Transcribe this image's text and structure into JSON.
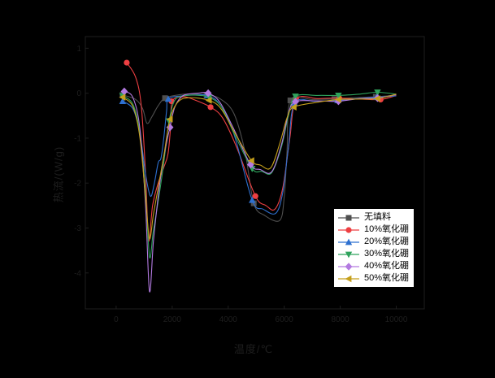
{
  "page": {
    "background": "#000000"
  },
  "chart_data": {
    "type": "line",
    "title": "",
    "xlabel": "温度/℃",
    "ylabel": "热流/(W/g)",
    "xlim": [
      -1100,
      11000
    ],
    "ylim": [
      -4.8,
      1.26
    ],
    "x_ticks": [
      0,
      2000,
      4000,
      6000,
      8000,
      10000
    ],
    "y_ticks": [
      1,
      0,
      -1,
      -2,
      -3,
      -4
    ],
    "grid": false,
    "legend_position": "right-center",
    "axis_color": "#1e1e1e",
    "series": [
      {
        "name": "无填料",
        "color": "#4f4f4f",
        "marker": "square",
        "points": [
          [
            230,
            -0.04
          ],
          [
            700,
            -0.14
          ],
          [
            950,
            -0.35
          ],
          [
            1100,
            -0.67
          ],
          [
            1280,
            -0.52
          ],
          [
            1500,
            -0.28
          ],
          [
            1744,
            -0.11
          ],
          [
            2300,
            -0.03
          ],
          [
            2800,
            -0.02
          ],
          [
            3228,
            -0.04
          ],
          [
            3700,
            -0.12
          ],
          [
            4200,
            -0.45
          ],
          [
            4600,
            -1.3
          ],
          [
            4913,
            -2.45
          ],
          [
            5300,
            -2.72
          ],
          [
            5840,
            -2.83
          ],
          [
            6000,
            -2.3
          ],
          [
            6100,
            -1.3
          ],
          [
            6220,
            -0.16
          ],
          [
            7000,
            -0.14
          ],
          [
            7790,
            -0.13
          ],
          [
            8500,
            -0.1
          ],
          [
            9270,
            -0.08
          ],
          [
            10000,
            -0.04
          ]
        ],
        "marker_points": [
          [
            230,
            -0.04
          ],
          [
            1744,
            -0.11
          ],
          [
            3228,
            -0.04
          ],
          [
            4913,
            -2.45
          ],
          [
            6220,
            -0.16
          ],
          [
            7790,
            -0.13
          ],
          [
            9270,
            -0.08
          ]
        ]
      },
      {
        "name": "10%氧化硼",
        "color": "#ee3f42",
        "marker": "circle",
        "points": [
          [
            378,
            0.68
          ],
          [
            700,
            0.35
          ],
          [
            900,
            -0.3
          ],
          [
            1050,
            -1.8
          ],
          [
            1160,
            -3.28
          ],
          [
            1300,
            -2.5
          ],
          [
            1500,
            -2.0
          ],
          [
            1700,
            -1.65
          ],
          [
            1850,
            -1.35
          ],
          [
            1950,
            -0.7
          ],
          [
            2000,
            -0.18
          ],
          [
            2400,
            -0.08
          ],
          [
            2800,
            -0.15
          ],
          [
            3370,
            -0.31
          ],
          [
            3800,
            -0.55
          ],
          [
            4300,
            -1.2
          ],
          [
            4970,
            -2.29
          ],
          [
            5350,
            -2.5
          ],
          [
            5670,
            -2.58
          ],
          [
            5950,
            -2.1
          ],
          [
            6200,
            -1.0
          ],
          [
            6430,
            -0.14
          ],
          [
            7200,
            -0.12
          ],
          [
            7965,
            -0.11
          ],
          [
            8700,
            -0.13
          ],
          [
            9440,
            -0.14
          ],
          [
            10000,
            -0.05
          ]
        ],
        "marker_points": [
          [
            378,
            0.68
          ],
          [
            1977,
            -0.18
          ],
          [
            3370,
            -0.31
          ],
          [
            4970,
            -2.29
          ],
          [
            6430,
            -0.14
          ],
          [
            7965,
            -0.11
          ],
          [
            9440,
            -0.14
          ]
        ]
      },
      {
        "name": "20%氧化硼",
        "color": "#2e70d0",
        "marker": "triangle-up",
        "points": [
          [
            230,
            -0.18
          ],
          [
            600,
            -0.35
          ],
          [
            850,
            -0.9
          ],
          [
            1050,
            -1.8
          ],
          [
            1220,
            -2.29
          ],
          [
            1350,
            -2.05
          ],
          [
            1500,
            -1.55
          ],
          [
            1600,
            -1.45
          ],
          [
            1700,
            -1.0
          ],
          [
            1800,
            -0.4
          ],
          [
            1860,
            -0.13
          ],
          [
            2300,
            -0.06
          ],
          [
            2800,
            -0.04
          ],
          [
            3256,
            -0.05
          ],
          [
            3700,
            -0.25
          ],
          [
            4200,
            -0.9
          ],
          [
            4855,
            -2.38
          ],
          [
            5250,
            -2.58
          ],
          [
            5700,
            -2.67
          ],
          [
            5950,
            -2.2
          ],
          [
            6150,
            -1.2
          ],
          [
            6370,
            -0.22
          ],
          [
            7100,
            -0.18
          ],
          [
            7907,
            -0.16
          ],
          [
            8600,
            -0.12
          ],
          [
            9300,
            -0.09
          ],
          [
            10000,
            -0.06
          ]
        ],
        "marker_points": [
          [
            230,
            -0.18
          ],
          [
            1860,
            -0.13
          ],
          [
            3256,
            -0.05
          ],
          [
            4855,
            -2.38
          ],
          [
            6370,
            -0.22
          ],
          [
            7907,
            -0.16
          ],
          [
            9300,
            -0.09
          ]
        ]
      },
      {
        "name": "30%氧化硼",
        "color": "#2fa35c",
        "marker": "triangle-down",
        "points": [
          [
            230,
            -0.06
          ],
          [
            600,
            -0.25
          ],
          [
            850,
            -0.9
          ],
          [
            1050,
            -2.2
          ],
          [
            1190,
            -3.64
          ],
          [
            1320,
            -3.1
          ],
          [
            1450,
            -2.6
          ],
          [
            1600,
            -2.0
          ],
          [
            1750,
            -1.3
          ],
          [
            1890,
            -0.62
          ],
          [
            2100,
            -0.15
          ],
          [
            2500,
            -0.05
          ],
          [
            3000,
            -0.05
          ],
          [
            3314,
            -0.09
          ],
          [
            3750,
            -0.3
          ],
          [
            4250,
            -0.95
          ],
          [
            4855,
            -1.68
          ],
          [
            5200,
            -1.74
          ],
          [
            5550,
            -1.77
          ],
          [
            5900,
            -1.2
          ],
          [
            6150,
            -0.5
          ],
          [
            6400,
            -0.07
          ],
          [
            7200,
            -0.05
          ],
          [
            7935,
            -0.05
          ],
          [
            8700,
            -0.02
          ],
          [
            9330,
            0.02
          ],
          [
            10000,
            -0.02
          ]
        ],
        "marker_points": [
          [
            230,
            -0.06
          ],
          [
            1890,
            -0.62
          ],
          [
            3314,
            -0.09
          ],
          [
            4855,
            -1.68
          ],
          [
            6400,
            -0.07
          ],
          [
            7935,
            -0.05
          ],
          [
            9330,
            0.02
          ]
        ]
      },
      {
        "name": "40%氧化硼",
        "color": "#b37ae1",
        "marker": "diamond",
        "points": [
          [
            290,
            0.04
          ],
          [
            600,
            -0.1
          ],
          [
            850,
            -0.8
          ],
          [
            1050,
            -2.5
          ],
          [
            1190,
            -4.41
          ],
          [
            1330,
            -3.3
          ],
          [
            1500,
            -2.3
          ],
          [
            1650,
            -1.6
          ],
          [
            1800,
            -1.1
          ],
          [
            1920,
            -0.76
          ],
          [
            2100,
            -0.3
          ],
          [
            2400,
            -0.05
          ],
          [
            2900,
            0.0
          ],
          [
            3285,
            0.0
          ],
          [
            3700,
            -0.2
          ],
          [
            4200,
            -0.8
          ],
          [
            4800,
            -1.59
          ],
          [
            5150,
            -1.7
          ],
          [
            5550,
            -1.75
          ],
          [
            5900,
            -1.15
          ],
          [
            6150,
            -0.45
          ],
          [
            6400,
            -0.19
          ],
          [
            7200,
            -0.17
          ],
          [
            7935,
            -0.18
          ],
          [
            8700,
            -0.12
          ],
          [
            9330,
            -0.11
          ],
          [
            10000,
            -0.03
          ]
        ],
        "marker_points": [
          [
            290,
            0.04
          ],
          [
            1920,
            -0.76
          ],
          [
            3285,
            0.0
          ],
          [
            4800,
            -1.59
          ],
          [
            6400,
            -0.19
          ],
          [
            7935,
            -0.18
          ],
          [
            9330,
            -0.11
          ]
        ]
      },
      {
        "name": "50%氧化硼",
        "color": "#c59f1b",
        "marker": "triangle-left",
        "points": [
          [
            230,
            -0.09
          ],
          [
            600,
            -0.3
          ],
          [
            850,
            -1.0
          ],
          [
            1060,
            -2.4
          ],
          [
            1190,
            -3.24
          ],
          [
            1330,
            -2.7
          ],
          [
            1500,
            -2.1
          ],
          [
            1700,
            -1.4
          ],
          [
            1920,
            -0.58
          ],
          [
            2200,
            -0.2
          ],
          [
            2600,
            -0.1
          ],
          [
            3314,
            -0.16
          ],
          [
            3750,
            -0.35
          ],
          [
            4250,
            -0.9
          ],
          [
            4830,
            -1.5
          ],
          [
            5150,
            -1.6
          ],
          [
            5520,
            -1.66
          ],
          [
            5850,
            -1.1
          ],
          [
            6100,
            -0.55
          ],
          [
            6340,
            -0.31
          ],
          [
            7200,
            -0.2
          ],
          [
            7935,
            -0.14
          ],
          [
            8700,
            -0.13
          ],
          [
            9330,
            -0.12
          ],
          [
            10000,
            -0.02
          ]
        ],
        "marker_points": [
          [
            230,
            -0.09
          ],
          [
            1920,
            -0.58
          ],
          [
            3314,
            -0.16
          ],
          [
            4830,
            -1.5
          ],
          [
            6340,
            -0.31
          ],
          [
            7935,
            -0.14
          ],
          [
            9330,
            -0.12
          ]
        ]
      }
    ]
  },
  "legend": {
    "entries": [
      "无填料",
      "10%氧化硼",
      "20%氧化硼",
      "30%氧化硼",
      "40%氧化硼",
      "50%氧化硼"
    ]
  }
}
